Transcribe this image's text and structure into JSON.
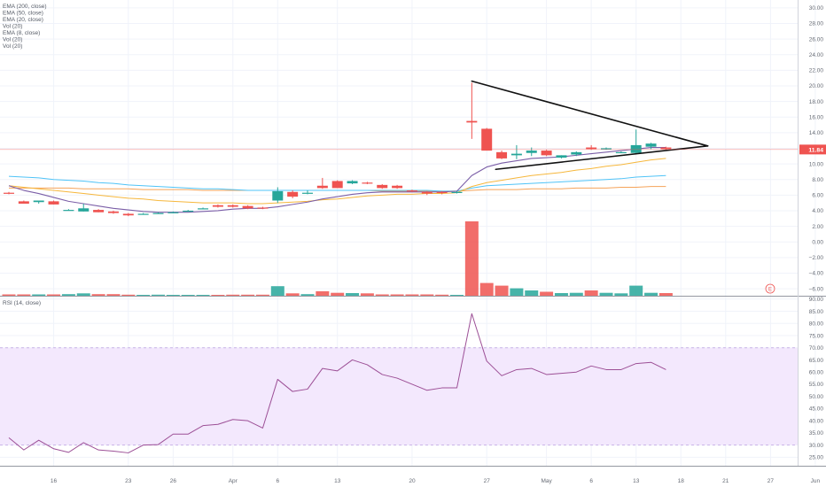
{
  "legend": {
    "price_pane": [
      "EMA (200, close)",
      "EMA (50, close)",
      "EMA (20, close)",
      "Vol (20)",
      "EMA (8, close)",
      "Vol (20)",
      "Vol (20)"
    ],
    "rsi_pane": "RSI (14, close)"
  },
  "last_price_label": "11.84",
  "earnings_marker": "E",
  "colors": {
    "up": "#26a69a",
    "down": "#ef5350",
    "ema8": "#7b5ea7",
    "ema20": "#f6b73c",
    "ema50": "#4fc3f7",
    "ema200": "#f5a35a",
    "trendline": "#111111",
    "rsi_line": "#9c4f96",
    "rsi_band": "#f3e8fd",
    "last_price": "#ef5350"
  },
  "chart_data": [
    {
      "type": "candlestick",
      "name": "price",
      "yticks": [
        -6.0,
        -4.0,
        -2.0,
        0.0,
        2.0,
        4.0,
        6.0,
        8.0,
        10.0,
        12.0,
        14.0,
        16.0,
        18.0,
        20.0,
        22.0,
        24.0,
        26.0,
        28.0,
        30.0
      ],
      "ylim": [
        -6.9,
        31
      ],
      "xticks": [
        {
          "label": "16",
          "i": 3
        },
        {
          "label": "23",
          "i": 8
        },
        {
          "label": "26",
          "i": 11
        },
        {
          "label": "Apr",
          "i": 15
        },
        {
          "label": "6",
          "i": 18
        },
        {
          "label": "13",
          "i": 22
        },
        {
          "label": "20",
          "i": 27
        },
        {
          "label": "27",
          "i": 32
        },
        {
          "label": "May",
          "i": 36
        },
        {
          "label": "6",
          "i": 39
        },
        {
          "label": "13",
          "i": 42
        },
        {
          "label": "18",
          "i": 45
        },
        {
          "label": "21",
          "i": 48
        },
        {
          "label": "27",
          "i": 51
        },
        {
          "label": "Jun",
          "i": 54
        }
      ],
      "candles": [
        {
          "o": 6.3,
          "h": 6.4,
          "l": 6.1,
          "c": 6.2
        },
        {
          "o": 5.2,
          "h": 5.3,
          "l": 4.9,
          "c": 4.9
        },
        {
          "o": 5.1,
          "h": 5.3,
          "l": 4.9,
          "c": 5.3
        },
        {
          "o": 5.2,
          "h": 5.3,
          "l": 4.8,
          "c": 4.8
        },
        {
          "o": 4.1,
          "h": 4.2,
          "l": 4.0,
          "c": 4.1
        },
        {
          "o": 3.9,
          "h": 4.9,
          "l": 3.9,
          "c": 4.3
        },
        {
          "o": 4.1,
          "h": 4.2,
          "l": 3.8,
          "c": 3.8
        },
        {
          "o": 3.9,
          "h": 4.0,
          "l": 3.6,
          "c": 3.7
        },
        {
          "o": 3.6,
          "h": 3.7,
          "l": 3.3,
          "c": 3.4
        },
        {
          "o": 3.6,
          "h": 3.7,
          "l": 3.5,
          "c": 3.6
        },
        {
          "o": 3.7,
          "h": 3.8,
          "l": 3.6,
          "c": 3.7
        },
        {
          "o": 3.8,
          "h": 3.9,
          "l": 3.7,
          "c": 3.8
        },
        {
          "o": 4.0,
          "h": 4.1,
          "l": 3.9,
          "c": 4.0
        },
        {
          "o": 4.3,
          "h": 4.4,
          "l": 4.2,
          "c": 4.3
        },
        {
          "o": 4.7,
          "h": 4.8,
          "l": 4.4,
          "c": 4.5
        },
        {
          "o": 4.7,
          "h": 4.8,
          "l": 4.4,
          "c": 4.5
        },
        {
          "o": 4.6,
          "h": 4.7,
          "l": 4.2,
          "c": 4.3
        },
        {
          "o": 4.4,
          "h": 4.5,
          "l": 4.2,
          "c": 4.3
        },
        {
          "o": 5.3,
          "h": 7.0,
          "l": 5.0,
          "c": 6.5
        },
        {
          "o": 6.4,
          "h": 6.6,
          "l": 5.6,
          "c": 5.8
        },
        {
          "o": 6.3,
          "h": 6.6,
          "l": 6.1,
          "c": 6.3
        },
        {
          "o": 7.2,
          "h": 8.2,
          "l": 6.8,
          "c": 6.9
        },
        {
          "o": 7.8,
          "h": 7.9,
          "l": 6.9,
          "c": 6.9
        },
        {
          "o": 7.5,
          "h": 7.9,
          "l": 7.4,
          "c": 7.8
        },
        {
          "o": 7.6,
          "h": 7.7,
          "l": 7.4,
          "c": 7.5
        },
        {
          "o": 7.3,
          "h": 7.4,
          "l": 6.8,
          "c": 6.9
        },
        {
          "o": 7.2,
          "h": 7.3,
          "l": 6.8,
          "c": 6.9
        },
        {
          "o": 6.6,
          "h": 6.7,
          "l": 6.4,
          "c": 6.5
        },
        {
          "o": 6.4,
          "h": 6.5,
          "l": 6.0,
          "c": 6.2
        },
        {
          "o": 6.4,
          "h": 6.5,
          "l": 6.1,
          "c": 6.3
        },
        {
          "o": 6.4,
          "h": 6.5,
          "l": 6.2,
          "c": 6.4
        },
        {
          "o": 15.5,
          "h": 20.4,
          "l": 13.2,
          "c": 15.3
        },
        {
          "o": 14.5,
          "h": 14.6,
          "l": 11.7,
          "c": 11.7
        },
        {
          "o": 11.5,
          "h": 11.7,
          "l": 10.6,
          "c": 10.7
        },
        {
          "o": 11.1,
          "h": 12.4,
          "l": 10.6,
          "c": 11.3
        },
        {
          "o": 11.4,
          "h": 12.1,
          "l": 11.0,
          "c": 11.7
        },
        {
          "o": 11.7,
          "h": 11.8,
          "l": 11.0,
          "c": 11.1
        },
        {
          "o": 10.8,
          "h": 11.1,
          "l": 10.7,
          "c": 11.1
        },
        {
          "o": 11.2,
          "h": 11.6,
          "l": 11.0,
          "c": 11.5
        },
        {
          "o": 12.1,
          "h": 12.4,
          "l": 11.8,
          "c": 11.9
        },
        {
          "o": 11.9,
          "h": 12.1,
          "l": 11.8,
          "c": 12.0
        },
        {
          "o": 11.5,
          "h": 11.6,
          "l": 11.4,
          "c": 11.5
        },
        {
          "o": 11.4,
          "h": 14.4,
          "l": 11.3,
          "c": 12.4
        },
        {
          "o": 12.2,
          "h": 12.7,
          "l": 11.9,
          "c": 12.6
        },
        {
          "o": 12.1,
          "h": 12.2,
          "l": 11.8,
          "c": 11.9
        }
      ],
      "volume": [
        0.25,
        0.25,
        0.25,
        0.25,
        0.3,
        0.45,
        0.3,
        0.3,
        0.2,
        0.15,
        0.2,
        0.15,
        0.15,
        0.15,
        0.15,
        0.2,
        0.2,
        0.2,
        1.8,
        0.45,
        0.3,
        0.85,
        0.55,
        0.5,
        0.45,
        0.25,
        0.25,
        0.25,
        0.25,
        0.2,
        0.15,
        14.0,
        2.4,
        1.9,
        1.4,
        1.0,
        0.75,
        0.5,
        0.55,
        1.0,
        0.55,
        0.45,
        1.9,
        0.55,
        0.5
      ],
      "volume_scale": "volume shown as relative overlay at pane bottom",
      "ema8": [
        7.2,
        6.6,
        6.2,
        5.7,
        5.2,
        4.9,
        4.6,
        4.3,
        4.1,
        3.9,
        3.8,
        3.8,
        3.8,
        3.9,
        4.0,
        4.2,
        4.3,
        4.3,
        4.5,
        4.8,
        5.1,
        5.5,
        5.8,
        6.1,
        6.3,
        6.4,
        6.4,
        6.4,
        6.4,
        6.4,
        6.5,
        8.5,
        9.6,
        10.1,
        10.4,
        10.7,
        10.8,
        10.9,
        11.1,
        11.3,
        11.5,
        11.7,
        11.9,
        12.1,
        12.1
      ],
      "ema20": [
        7.2,
        7.0,
        6.8,
        6.6,
        6.4,
        6.2,
        6.0,
        5.8,
        5.6,
        5.5,
        5.3,
        5.2,
        5.1,
        5.0,
        5.0,
        5.0,
        4.9,
        4.9,
        5.0,
        5.1,
        5.2,
        5.4,
        5.5,
        5.7,
        5.9,
        6.0,
        6.1,
        6.1,
        6.2,
        6.2,
        6.3,
        7.1,
        7.6,
        7.9,
        8.2,
        8.5,
        8.7,
        8.9,
        9.2,
        9.4,
        9.7,
        9.9,
        10.2,
        10.5,
        10.7
      ],
      "ema50": [
        8.4,
        8.3,
        8.2,
        8.0,
        7.9,
        7.8,
        7.6,
        7.5,
        7.3,
        7.2,
        7.1,
        7.0,
        6.9,
        6.8,
        6.8,
        6.7,
        6.6,
        6.6,
        6.6,
        6.6,
        6.6,
        6.6,
        6.6,
        6.6,
        6.6,
        6.6,
        6.6,
        6.6,
        6.6,
        6.5,
        6.5,
        6.9,
        7.2,
        7.3,
        7.4,
        7.5,
        7.6,
        7.7,
        7.8,
        7.9,
        8.0,
        8.1,
        8.3,
        8.4,
        8.5
      ],
      "ema200": [
        6.9,
        6.9,
        6.9,
        6.9,
        6.9,
        6.8,
        6.8,
        6.8,
        6.8,
        6.7,
        6.7,
        6.7,
        6.7,
        6.6,
        6.6,
        6.6,
        6.6,
        6.6,
        6.6,
        6.6,
        6.6,
        6.6,
        6.6,
        6.6,
        6.6,
        6.5,
        6.5,
        6.5,
        6.5,
        6.5,
        6.5,
        6.6,
        6.7,
        6.7,
        6.7,
        6.8,
        6.8,
        6.8,
        6.9,
        6.9,
        6.9,
        7.0,
        7.0,
        7.1,
        7.1
      ],
      "trendlines": [
        {
          "from": {
            "i": 31,
            "v": 20.6
          },
          "to": {
            "i": 46.8,
            "v": 12.3
          }
        },
        {
          "from": {
            "i": 32.6,
            "v": 9.3
          },
          "to": {
            "i": 46.8,
            "v": 12.3
          }
        }
      ],
      "last_price": 11.84
    },
    {
      "type": "line",
      "name": "RSI (14, close)",
      "yticks": [
        25.0,
        30.0,
        35.0,
        40.0,
        45.0,
        50.0,
        55.0,
        60.0,
        65.0,
        70.0,
        75.0,
        80.0,
        85.0,
        90.0
      ],
      "ylim": [
        21.5,
        91
      ],
      "band": [
        30,
        70
      ],
      "values": [
        33,
        28,
        32,
        28.5,
        27,
        31,
        28,
        27.5,
        26.8,
        30,
        30.2,
        34.5,
        34.5,
        38,
        38.5,
        40.5,
        40,
        37,
        57,
        52,
        53,
        61.5,
        60.5,
        65,
        63,
        59,
        57.5,
        55,
        52.5,
        53.5,
        53.5,
        84,
        64.5,
        58.5,
        61,
        61.5,
        59,
        59.5,
        60,
        62.5,
        61,
        61,
        63.5,
        64,
        61
      ]
    }
  ]
}
